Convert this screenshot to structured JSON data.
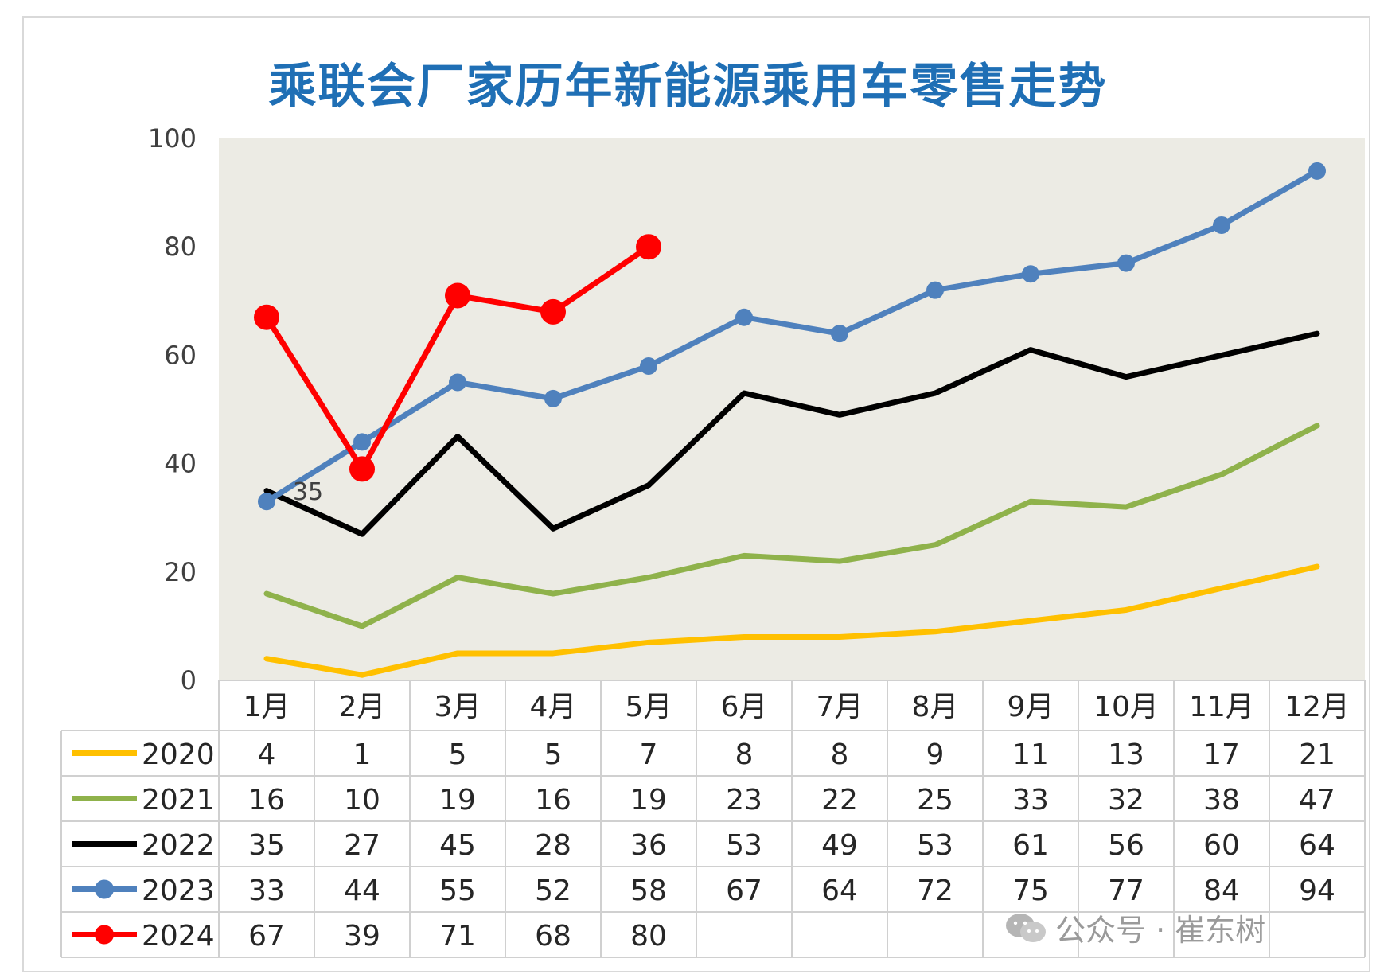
{
  "title": "乘联会厂家历年新能源乘用车零售走势",
  "watermark": "公众号 · 崔东树",
  "chart_data": {
    "type": "line",
    "title": "乘联会厂家历年新能源乘用车零售走势",
    "categories": [
      "1月",
      "2月",
      "3月",
      "4月",
      "5月",
      "6月",
      "7月",
      "8月",
      "9月",
      "10月",
      "11月",
      "12月"
    ],
    "ylim": [
      0,
      100
    ],
    "yticks": [
      0,
      20,
      40,
      60,
      80,
      100
    ],
    "legend": "data-table",
    "grid": false,
    "series": [
      {
        "name": "2020",
        "color": "#ffc000",
        "marker": false,
        "values": [
          4,
          1,
          5,
          5,
          7,
          8,
          8,
          9,
          11,
          13,
          17,
          21
        ]
      },
      {
        "name": "2021",
        "color": "#8fb24b",
        "marker": false,
        "values": [
          16,
          10,
          19,
          16,
          19,
          23,
          22,
          25,
          33,
          32,
          38,
          47
        ]
      },
      {
        "name": "2022",
        "color": "#000000",
        "marker": false,
        "values": [
          35,
          27,
          45,
          28,
          36,
          53,
          49,
          53,
          61,
          56,
          60,
          64
        ]
      },
      {
        "name": "2023",
        "color": "#4f81bd",
        "marker": true,
        "values": [
          33,
          44,
          55,
          52,
          58,
          67,
          64,
          72,
          75,
          77,
          84,
          94
        ]
      },
      {
        "name": "2024",
        "color": "#ff0000",
        "marker": true,
        "values": [
          67,
          39,
          71,
          68,
          80,
          null,
          null,
          null,
          null,
          null,
          null,
          null
        ]
      }
    ],
    "annotations": [
      {
        "series": "2022",
        "category": "1月",
        "text": "35"
      }
    ]
  }
}
